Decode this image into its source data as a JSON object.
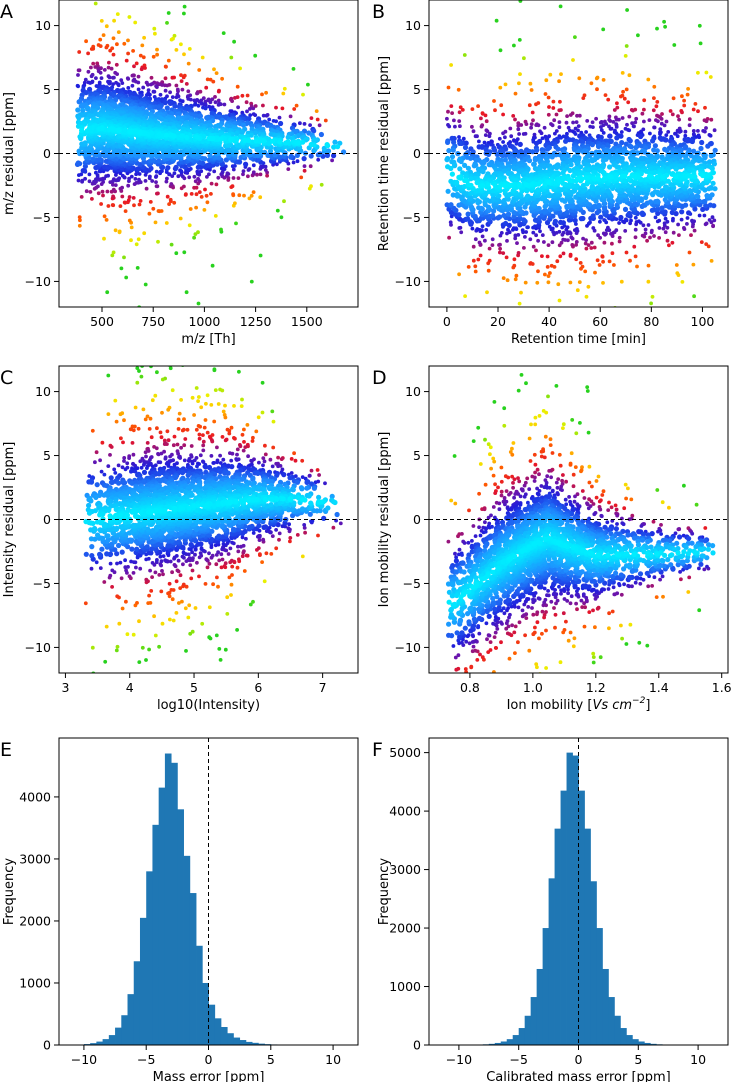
{
  "figure": {
    "panels": [
      "A",
      "B",
      "C",
      "D",
      "E",
      "F"
    ]
  },
  "chart_data": [
    {
      "panel": "A",
      "type": "scatter",
      "title": "",
      "xlabel": "m/z [Th]",
      "ylabel": "m/z residual [ppm]",
      "xlim": [
        290,
        1750
      ],
      "ylim": [
        -12,
        12
      ],
      "xticks": [
        500,
        750,
        1000,
        1250,
        1500
      ],
      "xtick_labels": [
        "500",
        "750",
        "1000",
        "1250",
        "1500"
      ],
      "yticks": [
        -10,
        -5,
        0,
        5,
        10
      ],
      "ytick_labels": [
        "−10",
        "−5",
        "0",
        "5",
        "10"
      ],
      "reference_line_y": 0,
      "density_ridge": [
        [
          390,
          1.8
        ],
        [
          500,
          2.0
        ],
        [
          750,
          1.5
        ],
        [
          1000,
          1.2
        ],
        [
          1250,
          1.0
        ],
        [
          1500,
          0.8
        ],
        [
          1650,
          0.6
        ]
      ],
      "spread_ppm": [
        [
          390,
          2.6
        ],
        [
          600,
          2.5
        ],
        [
          900,
          2.0
        ],
        [
          1200,
          1.5
        ],
        [
          1500,
          1.0
        ],
        [
          1650,
          0.6
        ]
      ],
      "x_range_points": [
        380,
        1680
      ],
      "density_x_profile": [
        [
          380,
          0.4
        ],
        [
          500,
          1.0
        ],
        [
          700,
          0.9
        ],
        [
          1000,
          0.6
        ],
        [
          1250,
          0.35
        ],
        [
          1500,
          0.12
        ],
        [
          1680,
          0.03
        ]
      ],
      "colormap": "rainbow (cyan = high density, green = low)"
    },
    {
      "panel": "B",
      "type": "scatter",
      "title": "",
      "xlabel": "Retention time [min]",
      "ylabel": "Retention time residual [ppm]",
      "xlim": [
        -7,
        110
      ],
      "ylim": [
        -12,
        12
      ],
      "xticks": [
        0,
        20,
        40,
        60,
        80,
        100
      ],
      "xtick_labels": [
        "0",
        "20",
        "40",
        "60",
        "80",
        "100"
      ],
      "yticks": [
        -10,
        -5,
        0,
        5,
        10
      ],
      "ytick_labels": [
        "−10",
        "−5",
        "0",
        "5",
        "10"
      ],
      "reference_line_y": 0,
      "density_ridge": [
        [
          0,
          -1.5
        ],
        [
          10,
          -2.5
        ],
        [
          30,
          -2.5
        ],
        [
          50,
          -2.0
        ],
        [
          70,
          -1.8
        ],
        [
          90,
          -1.8
        ],
        [
          104,
          -1.7
        ]
      ],
      "spread_ppm": [
        [
          0,
          2.5
        ],
        [
          20,
          2.5
        ],
        [
          50,
          2.7
        ],
        [
          80,
          2.5
        ],
        [
          104,
          2.2
        ]
      ],
      "x_range_points": [
        0,
        105
      ],
      "density_x_profile": [
        [
          0,
          0.3
        ],
        [
          10,
          0.8
        ],
        [
          30,
          1.0
        ],
        [
          60,
          1.0
        ],
        [
          90,
          0.9
        ],
        [
          105,
          0.5
        ]
      ],
      "colormap": "rainbow (cyan = high density, green = low)"
    },
    {
      "panel": "C",
      "type": "scatter",
      "title": "",
      "xlabel": "log10(Intensity)",
      "ylabel": "Intensity residual [ppm]",
      "xlim": [
        2.9,
        7.55
      ],
      "ylim": [
        -12,
        12
      ],
      "xticks": [
        3,
        4,
        5,
        6,
        7
      ],
      "xtick_labels": [
        "3",
        "4",
        "5",
        "6",
        "7"
      ],
      "yticks": [
        -10,
        -5,
        0,
        5,
        10
      ],
      "ytick_labels": [
        "−10",
        "−5",
        "0",
        "5",
        "10"
      ],
      "reference_line_y": 0,
      "density_ridge": [
        [
          3.3,
          0.0
        ],
        [
          4.0,
          0.4
        ],
        [
          4.5,
          0.7
        ],
        [
          5.0,
          1.0
        ],
        [
          5.5,
          1.3
        ],
        [
          6.0,
          1.6
        ],
        [
          6.6,
          1.6
        ],
        [
          7.2,
          1.2
        ]
      ],
      "spread_ppm": [
        [
          3.3,
          2.6
        ],
        [
          4.5,
          2.6
        ],
        [
          5.5,
          2.3
        ],
        [
          6.3,
          1.6
        ],
        [
          7.2,
          0.9
        ]
      ],
      "x_range_points": [
        3.3,
        7.3
      ],
      "density_x_profile": [
        [
          3.3,
          0.1
        ],
        [
          3.8,
          0.6
        ],
        [
          4.5,
          1.0
        ],
        [
          5.2,
          0.95
        ],
        [
          6.0,
          0.55
        ],
        [
          6.6,
          0.2
        ],
        [
          7.3,
          0.03
        ]
      ],
      "colormap": "rainbow (cyan = high density, green = low)"
    },
    {
      "panel": "D",
      "type": "scatter",
      "title": "",
      "xlabel": "Ion mobility [Vs cm⁻²]",
      "ylabel": "Ion mobility residual [ppm]",
      "xlim": [
        0.67,
        1.62
      ],
      "ylim": [
        -12,
        12
      ],
      "xticks": [
        0.8,
        1.0,
        1.2,
        1.4,
        1.6
      ],
      "xtick_labels": [
        "0.8",
        "1.0",
        "1.2",
        "1.4",
        "1.6"
      ],
      "yticks": [
        -10,
        -5,
        0,
        5,
        10
      ],
      "ytick_labels": [
        "−10",
        "−5",
        "0",
        "5",
        "10"
      ],
      "reference_line_y": 0,
      "density_ridge": [
        [
          0.75,
          -6.5
        ],
        [
          0.8,
          -5.5
        ],
        [
          0.9,
          -3.5
        ],
        [
          1.0,
          -2.0
        ],
        [
          1.05,
          -1.5
        ],
        [
          1.1,
          -2.0
        ],
        [
          1.2,
          -2.8
        ],
        [
          1.4,
          -2.7
        ],
        [
          1.56,
          -2.5
        ]
      ],
      "spread_ppm": [
        [
          0.75,
          2.5
        ],
        [
          0.9,
          2.8
        ],
        [
          1.05,
          2.8
        ],
        [
          1.2,
          2.0
        ],
        [
          1.4,
          1.2
        ],
        [
          1.56,
          0.8
        ]
      ],
      "x_range_points": [
        0.73,
        1.58
      ],
      "density_x_profile": [
        [
          0.73,
          0.15
        ],
        [
          0.82,
          0.6
        ],
        [
          0.95,
          1.0
        ],
        [
          1.05,
          1.0
        ],
        [
          1.15,
          0.7
        ],
        [
          1.3,
          0.3
        ],
        [
          1.45,
          0.15
        ],
        [
          1.58,
          0.05
        ]
      ],
      "colormap": "rainbow (cyan = high density, green = low)"
    },
    {
      "panel": "E",
      "type": "bar",
      "title": "",
      "xlabel": "Mass error [ppm]",
      "ylabel": "Frequency",
      "xlim": [
        -12,
        12
      ],
      "ylim": [
        0,
        4950
      ],
      "xticks": [
        -10,
        -5,
        0,
        5,
        10
      ],
      "xtick_labels": [
        "−10",
        "−5",
        "0",
        "5",
        "10"
      ],
      "yticks": [
        0,
        1000,
        2000,
        3000,
        4000
      ],
      "ytick_labels": [
        "0",
        "1000",
        "2000",
        "3000",
        "4000"
      ],
      "reference_line_x": 0,
      "bar_color": "#1f77b4",
      "bin_width": 0.5,
      "bin_centers": [
        -10.75,
        -10.25,
        -9.75,
        -9.25,
        -8.75,
        -8.25,
        -7.75,
        -7.25,
        -6.75,
        -6.25,
        -5.75,
        -5.25,
        -4.75,
        -4.25,
        -3.75,
        -3.25,
        -2.75,
        -2.25,
        -1.75,
        -1.25,
        -0.75,
        -0.25,
        0.25,
        0.75,
        1.25,
        1.75,
        2.25,
        2.75,
        3.25,
        3.75,
        4.25,
        4.75,
        5.25,
        5.75,
        6.25,
        6.75,
        7.25,
        7.75,
        8.25,
        8.75,
        9.25,
        9.75
      ],
      "values": [
        2,
        5,
        15,
        30,
        55,
        95,
        160,
        280,
        480,
        820,
        1350,
        2050,
        2800,
        3550,
        4150,
        4700,
        4550,
        3800,
        3050,
        2450,
        1600,
        1000,
        650,
        430,
        290,
        190,
        120,
        80,
        50,
        35,
        22,
        14,
        9,
        6,
        4,
        3,
        2,
        2,
        1,
        1,
        1,
        0
      ]
    },
    {
      "panel": "F",
      "type": "bar",
      "title": "",
      "xlabel": "Calibrated mass error [ppm]",
      "ylabel": "Frequency",
      "xlim": [
        -12.5,
        12.5
      ],
      "ylim": [
        0,
        5250
      ],
      "xticks": [
        -10,
        -5,
        0,
        5,
        10
      ],
      "xtick_labels": [
        "−10",
        "−5",
        "0",
        "5",
        "10"
      ],
      "yticks": [
        0,
        1000,
        2000,
        3000,
        4000,
        5000
      ],
      "ytick_labels": [
        "0",
        "1000",
        "2000",
        "3000",
        "4000",
        "5000"
      ],
      "reference_line_x": 0,
      "bar_color": "#1f77b4",
      "bin_width": 0.5,
      "bin_centers": [
        -10.25,
        -9.75,
        -9.25,
        -8.75,
        -8.25,
        -7.75,
        -7.25,
        -6.75,
        -6.25,
        -5.75,
        -5.25,
        -4.75,
        -4.25,
        -3.75,
        -3.25,
        -2.75,
        -2.25,
        -1.75,
        -1.25,
        -0.75,
        -0.25,
        0.25,
        0.75,
        1.25,
        1.75,
        2.25,
        2.75,
        3.25,
        3.75,
        4.25,
        4.75,
        5.25,
        5.75,
        6.25,
        6.75,
        7.25,
        7.75,
        8.25,
        8.75,
        9.25,
        9.75,
        10.25
      ],
      "values": [
        1,
        2,
        3,
        5,
        8,
        12,
        20,
        35,
        60,
        100,
        170,
        290,
        500,
        820,
        1300,
        2000,
        2850,
        3700,
        4350,
        5000,
        4950,
        4350,
        3700,
        2800,
        2000,
        1300,
        820,
        500,
        290,
        170,
        100,
        60,
        35,
        20,
        12,
        8,
        5,
        3,
        2,
        1,
        1,
        0
      ]
    }
  ]
}
